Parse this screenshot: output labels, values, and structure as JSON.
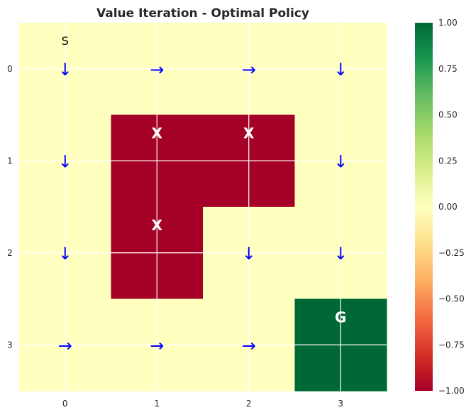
{
  "chart_data": {
    "type": "heatmap",
    "title": "Value Iteration - Optimal Policy",
    "x_ticks": [
      "0",
      "1",
      "2",
      "3"
    ],
    "y_ticks": [
      "0",
      "1",
      "2",
      "3"
    ],
    "grid": true,
    "colormap": "RdYlGn",
    "colorbar": {
      "min": -1.0,
      "max": 1.0,
      "ticks": [
        "1.00",
        "0.75",
        "0.50",
        "0.25",
        "0.00",
        "−0.25",
        "−0.50",
        "−0.75",
        "−1.00"
      ],
      "tick_values": [
        1.0,
        0.75,
        0.5,
        0.25,
        0.0,
        -0.25,
        -0.5,
        -0.75,
        -1.0
      ],
      "colors": [
        "#a50026",
        "#d73027",
        "#f46d43",
        "#fdae61",
        "#fee08b",
        "#ffffbf",
        "#d9ef8b",
        "#a6d96a",
        "#66bd63",
        "#1a9850",
        "#006837"
      ]
    },
    "values": [
      [
        0,
        0,
        0,
        0
      ],
      [
        0,
        -1,
        -1,
        0
      ],
      [
        0,
        -1,
        0,
        0
      ],
      [
        0,
        0,
        0,
        1
      ]
    ],
    "policy": [
      [
        "down",
        "right",
        "right",
        "down"
      ],
      [
        "down",
        "",
        "",
        "down"
      ],
      [
        "down",
        "",
        "down",
        "down"
      ],
      [
        "right",
        "right",
        "right",
        ""
      ]
    ],
    "arrow_glyphs": {
      "down": "↓",
      "right": "→"
    },
    "arrow_color": "#0000ff",
    "start": {
      "row": 0,
      "col": 0,
      "label": "S"
    },
    "walls": [
      {
        "row": 1,
        "col": 1,
        "label": "X"
      },
      {
        "row": 1,
        "col": 2,
        "label": "X"
      },
      {
        "row": 2,
        "col": 1,
        "label": "X"
      }
    ],
    "goal": {
      "row": 3,
      "col": 3,
      "label": "G"
    }
  }
}
